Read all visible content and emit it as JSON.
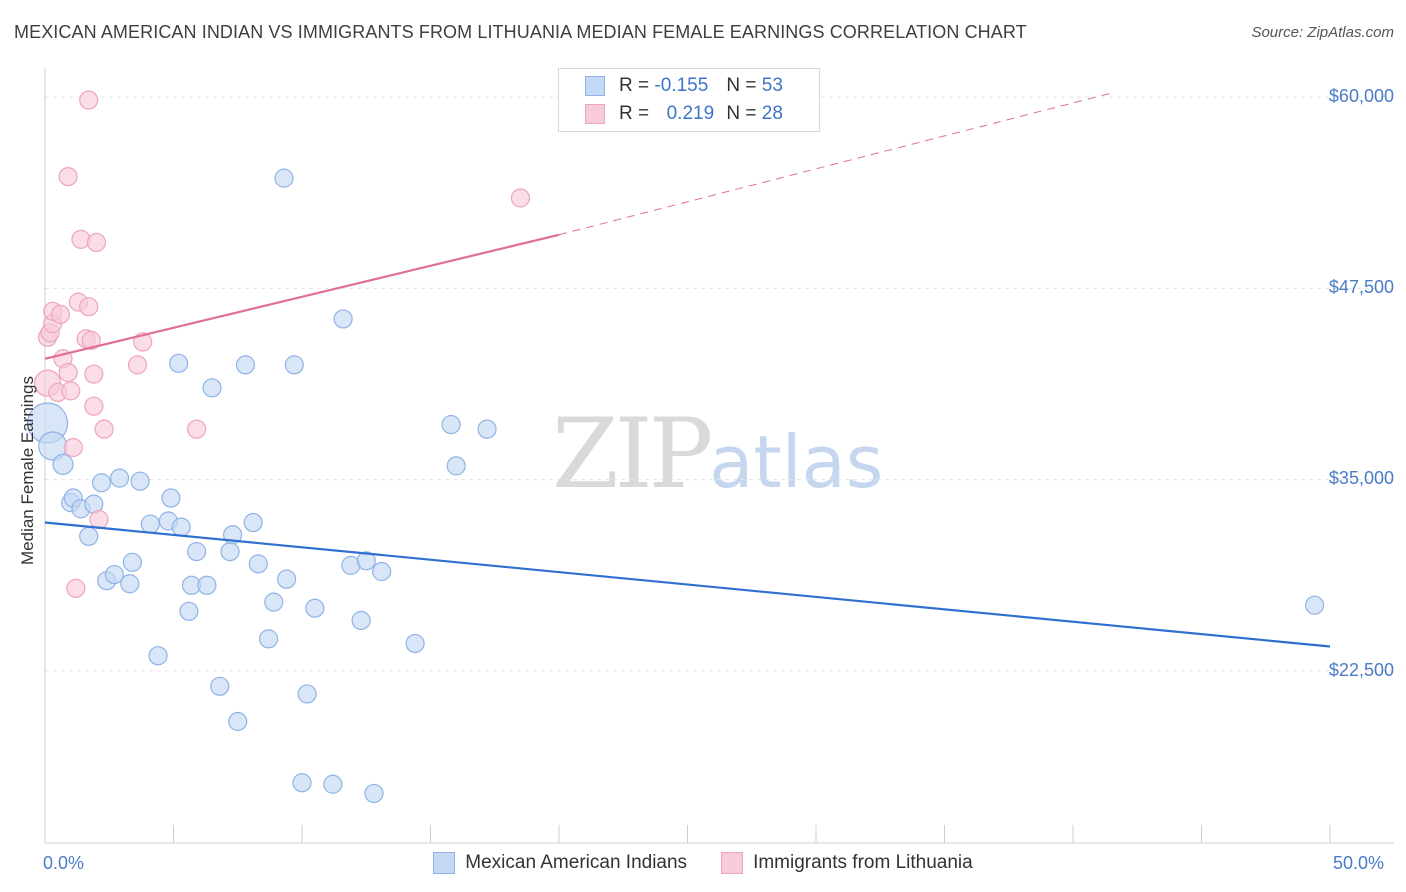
{
  "title": "MEXICAN AMERICAN INDIAN VS IMMIGRANTS FROM LITHUANIA MEDIAN FEMALE EARNINGS CORRELATION CHART",
  "source": "Source: ZipAtlas.com",
  "watermark": {
    "zip": "ZIP",
    "atlas": "atlas"
  },
  "stats": {
    "series1": {
      "r_label": "R =",
      "r_value": "-0.155",
      "n_label": "N =",
      "n_value": "53"
    },
    "series2": {
      "r_label": "R =",
      "r_value": "0.219",
      "n_label": "N =",
      "n_value": "28"
    }
  },
  "colors": {
    "blue": "#4a7cc7",
    "blue_fill": "#c4d9f5",
    "blue_stroke": "#8fb3e6",
    "blue_line": "#2f6fcf",
    "pink_fill": "#f8cbd8",
    "pink_stroke": "#eea5bb",
    "pink_line": "#e07095"
  },
  "chart_data": {
    "type": "scatter",
    "title": "MEXICAN AMERICAN INDIAN VS IMMIGRANTS FROM LITHUANIA MEDIAN FEMALE EARNINGS CORRELATION CHART",
    "xlabel": "",
    "ylabel": "Median Female Earnings",
    "xlim": [
      0,
      50
    ],
    "ylim": [
      12000,
      61500
    ],
    "x_tick_labels": [
      "0.0%",
      "50.0%"
    ],
    "y_ticks": [
      22500,
      35000,
      47500,
      60000
    ],
    "y_tick_labels": [
      "$22,500",
      "$35,000",
      "$47,500",
      "$60,000"
    ],
    "legend": [
      "Mexican American Indians",
      "Immigrants from Lithuania"
    ],
    "series": [
      {
        "name": "Mexican American Indians",
        "points": [
          [
            0.1,
            38700,
            20
          ],
          [
            0.3,
            37200,
            14
          ],
          [
            0.7,
            36000,
            10
          ],
          [
            1.0,
            33500,
            9
          ],
          [
            1.1,
            33800,
            9
          ],
          [
            1.4,
            33100,
            9
          ],
          [
            1.7,
            31300,
            9
          ],
          [
            1.9,
            33400,
            9
          ],
          [
            2.2,
            34800,
            9
          ],
          [
            2.4,
            28400,
            9
          ],
          [
            2.7,
            28800,
            9
          ],
          [
            2.9,
            35100,
            9
          ],
          [
            3.3,
            28200,
            9
          ],
          [
            3.4,
            29600,
            9
          ],
          [
            3.7,
            34900,
            9
          ],
          [
            4.1,
            32100,
            9
          ],
          [
            4.4,
            23500,
            9
          ],
          [
            4.8,
            32300,
            9
          ],
          [
            4.9,
            33800,
            9
          ],
          [
            5.2,
            42600,
            9
          ],
          [
            5.3,
            31900,
            9
          ],
          [
            5.6,
            26400,
            9
          ],
          [
            5.7,
            28100,
            9
          ],
          [
            5.9,
            30300,
            9
          ],
          [
            6.3,
            28100,
            9
          ],
          [
            6.5,
            41000,
            9
          ],
          [
            6.8,
            21500,
            9
          ],
          [
            7.2,
            30300,
            9
          ],
          [
            7.3,
            31400,
            9
          ],
          [
            7.5,
            19200,
            9
          ],
          [
            7.8,
            42500,
            9
          ],
          [
            8.1,
            32200,
            9
          ],
          [
            8.3,
            29500,
            9
          ],
          [
            8.7,
            24600,
            9
          ],
          [
            8.9,
            27000,
            9
          ],
          [
            9.3,
            54700,
            9
          ],
          [
            9.4,
            28500,
            9
          ],
          [
            9.7,
            42500,
            9
          ],
          [
            10.0,
            15200,
            9
          ],
          [
            10.2,
            21000,
            9
          ],
          [
            10.5,
            26600,
            9
          ],
          [
            11.2,
            15100,
            9
          ],
          [
            11.6,
            45500,
            9
          ],
          [
            11.9,
            29400,
            9
          ],
          [
            12.3,
            25800,
            9
          ],
          [
            12.5,
            29700,
            9
          ],
          [
            12.8,
            14500,
            9
          ],
          [
            13.1,
            29000,
            9
          ],
          [
            14.4,
            24300,
            9
          ],
          [
            15.8,
            38600,
            9
          ],
          [
            16.0,
            35900,
            9
          ],
          [
            17.2,
            38300,
            9
          ],
          [
            49.4,
            26800,
            9
          ]
        ]
      },
      {
        "name": "Immigrants from Lithuania",
        "points": [
          [
            0.1,
            41300,
            13
          ],
          [
            0.1,
            44300,
            9
          ],
          [
            0.2,
            44600,
            9
          ],
          [
            0.3,
            45200,
            9
          ],
          [
            0.3,
            46000,
            9
          ],
          [
            0.5,
            40700,
            9
          ],
          [
            0.6,
            45800,
            9
          ],
          [
            0.7,
            42900,
            9
          ],
          [
            0.9,
            54800,
            9
          ],
          [
            0.9,
            42000,
            9
          ],
          [
            1.0,
            40800,
            9
          ],
          [
            1.1,
            37100,
            9
          ],
          [
            1.2,
            27900,
            9
          ],
          [
            1.3,
            46600,
            9
          ],
          [
            1.4,
            50700,
            9
          ],
          [
            1.6,
            44200,
            9
          ],
          [
            1.7,
            46300,
            9
          ],
          [
            1.7,
            59800,
            9
          ],
          [
            1.8,
            44100,
            9
          ],
          [
            1.9,
            39800,
            9
          ],
          [
            1.9,
            41900,
            9
          ],
          [
            2.0,
            50500,
            9
          ],
          [
            2.1,
            32400,
            9
          ],
          [
            2.3,
            38300,
            9
          ],
          [
            3.6,
            42500,
            9
          ],
          [
            3.8,
            44000,
            9
          ],
          [
            5.9,
            38300,
            9
          ],
          [
            18.5,
            53400,
            9
          ]
        ]
      }
    ],
    "trend_lines": [
      {
        "series": "Mexican American Indians",
        "x": [
          0,
          50
        ],
        "y": [
          32200,
          24100
        ],
        "style": "solid"
      },
      {
        "series": "Immigrants from Lithuania",
        "x": [
          0,
          20
        ],
        "y": [
          42900,
          51000
        ],
        "style": "solid"
      },
      {
        "series": "Immigrants from Lithuania",
        "x": [
          20,
          41.6
        ],
        "y": [
          51000,
          60300
        ],
        "style": "dashed"
      }
    ]
  }
}
